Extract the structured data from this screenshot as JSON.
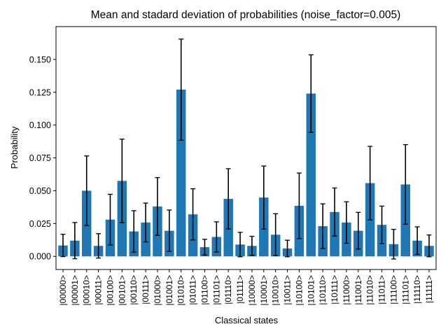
{
  "chart_data": {
    "type": "bar",
    "title": "Mean and stadard deviation of probabilities (noise_factor=0.005)",
    "xlabel": "Classical states",
    "ylabel": "Probability",
    "ylim": [
      -0.01,
      0.175
    ],
    "yticks": [
      0.0,
      0.025,
      0.05,
      0.075,
      0.1,
      0.125,
      0.15
    ],
    "ytick_labels": [
      "0.000",
      "0.025",
      "0.050",
      "0.075",
      "0.100",
      "0.125",
      "0.150"
    ],
    "grid": false,
    "legend": "none",
    "bar_color": "#1f77b4",
    "error_color": "#000000",
    "categories": [
      "|00000>",
      "|00001>",
      "|00010>",
      "|00011>",
      "|00100>",
      "|00101>",
      "|00110>",
      "|00111>",
      "|01000>",
      "|01001>",
      "|01010>",
      "|01011>",
      "|01100>",
      "|01101>",
      "|01110>",
      "|01111>",
      "|10000>",
      "|10001>",
      "|10010>",
      "|10011>",
      "|10100>",
      "|10101>",
      "|10110>",
      "|10111>",
      "|11000>",
      "|11001>",
      "|11010>",
      "|11011>",
      "|11100>",
      "|11101>",
      "|11110>",
      "|11111>"
    ],
    "values": [
      0.0083,
      0.012,
      0.05,
      0.008,
      0.028,
      0.0575,
      0.019,
      0.0258,
      0.038,
      0.0195,
      0.127,
      0.032,
      0.007,
      0.0148,
      0.0438,
      0.009,
      0.008,
      0.0448,
      0.0165,
      0.006,
      0.0385,
      0.124,
      0.023,
      0.0338,
      0.0258,
      0.0195,
      0.0558,
      0.024,
      0.0093,
      0.0548,
      0.012,
      0.008
    ],
    "errors": [
      0.0085,
      0.0138,
      0.0265,
      0.0093,
      0.0193,
      0.0318,
      0.0158,
      0.0148,
      0.022,
      0.0158,
      0.0385,
      0.0195,
      0.006,
      0.0115,
      0.023,
      0.0093,
      0.0073,
      0.024,
      0.016,
      0.0063,
      0.025,
      0.0295,
      0.017,
      0.0183,
      0.0158,
      0.014,
      0.028,
      0.0143,
      0.0113,
      0.0303,
      0.0105,
      0.0083
    ]
  }
}
